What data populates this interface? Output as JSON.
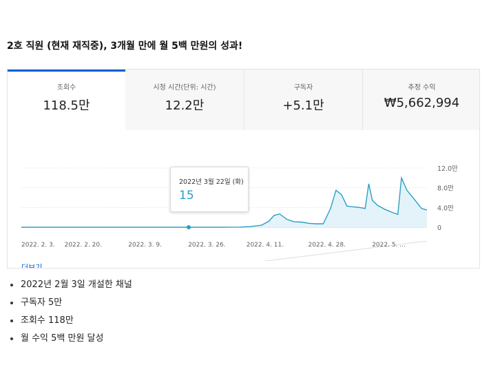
{
  "heading": "2호 직원 (현재 재직중), 3개월 만에 월 5백 만원의 성과!",
  "tabs": [
    {
      "label": "조회수",
      "value": "118.5만"
    },
    {
      "label": "시청 시간(단위: 시간)",
      "value": "12.2만"
    },
    {
      "label": "구독자",
      "value": "+5.1만"
    },
    {
      "label": "추정 수익",
      "value": "₩5,662,994"
    }
  ],
  "tooltip": {
    "date": "2022년 3월 22일 (화)",
    "value": "15"
  },
  "more_link": "더보기",
  "bullets": [
    "2022년 2월 3일 개설한 채널",
    "구독자 5만",
    "조회수 118만",
    "월 수익 5백 만원 달성"
  ],
  "chart_data": {
    "type": "area",
    "y_ticks": [
      "12.0만",
      "8.0만",
      "4.0만",
      "0"
    ],
    "y_tick_values": [
      120000,
      80000,
      40000,
      0
    ],
    "ylim": [
      0,
      120000
    ],
    "x_tick_labels": [
      "2022. 2. 3.",
      "2022. 2. 20.",
      "2022. 3. 9.",
      "2022. 3. 26.",
      "2022. 4. 11.",
      "2022. 4. 28.",
      "2022. 5. ..."
    ],
    "x_tick_days": [
      0,
      17,
      34,
      51,
      67,
      84,
      101
    ],
    "series": [
      {
        "values": [
          [
            0,
            15
          ],
          [
            10,
            15
          ],
          [
            20,
            15
          ],
          [
            30,
            15
          ],
          [
            40,
            15
          ],
          [
            47,
            15
          ],
          [
            55,
            15
          ],
          [
            60,
            300
          ],
          [
            63,
            1500
          ],
          [
            66,
            4000
          ],
          [
            68,
            12000
          ],
          [
            69.5,
            24000
          ],
          [
            71,
            27000
          ],
          [
            73,
            16000
          ],
          [
            75,
            11000
          ],
          [
            77,
            10500
          ],
          [
            79,
            8000
          ],
          [
            81,
            7000
          ],
          [
            83,
            7000
          ],
          [
            85,
            38000
          ],
          [
            86.5,
            75000
          ],
          [
            88,
            66000
          ],
          [
            89.5,
            43000
          ],
          [
            91,
            41500
          ],
          [
            93,
            40000
          ],
          [
            94.5,
            38000
          ],
          [
            95.5,
            88000
          ],
          [
            96.5,
            54000
          ],
          [
            98,
            44000
          ],
          [
            100,
            36000
          ],
          [
            102,
            30000
          ],
          [
            103.5,
            26000
          ],
          [
            104.5,
            100000
          ],
          [
            106,
            75000
          ],
          [
            108,
            57000
          ],
          [
            110,
            38000
          ],
          [
            111.5,
            35000
          ]
        ],
        "color": "#2a9ec4"
      }
    ],
    "highlight_index_day": 46,
    "video_marker_days": [
      46,
      55,
      61,
      75,
      81,
      86.5,
      94
    ]
  }
}
